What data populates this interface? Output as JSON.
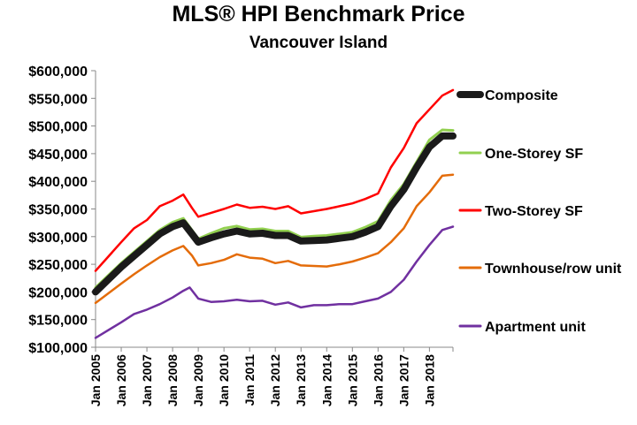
{
  "chart_data": {
    "type": "line",
    "title": "MLS® HPI Benchmark Price",
    "subtitle": "Vancouver Island",
    "xlabel": "",
    "ylabel": "",
    "ylim": [
      100000,
      600000
    ],
    "xlim": [
      "2005-01",
      "2018-12"
    ],
    "x_tick_labels": [
      "Jan 2005",
      "Jan 2006",
      "Jan 2007",
      "Jan 2008",
      "Jan 2009",
      "Jan 2010",
      "Jan 2011",
      "Jan 2012",
      "Jan 2013",
      "Jan 2014",
      "Jan 2015",
      "Jan 2016",
      "Jan 2017",
      "Jan 2018"
    ],
    "y_ticks": [
      100000,
      150000,
      200000,
      250000,
      300000,
      350000,
      400000,
      450000,
      500000,
      550000,
      600000
    ],
    "y_tick_labels": [
      "$100,000",
      "$150,000",
      "$200,000",
      "$250,000",
      "$300,000",
      "$350,000",
      "$400,000",
      "$450,000",
      "$500,000",
      "$550,000",
      "$600,000"
    ],
    "legend_placement": "right",
    "grid": false,
    "series": [
      {
        "name": "Composite",
        "color": "#1a1a1a",
        "points": [
          [
            "2005-01",
            200000
          ],
          [
            "2006-01",
            245000
          ],
          [
            "2006-07",
            265000
          ],
          [
            "2007-01",
            285000
          ],
          [
            "2007-07",
            305000
          ],
          [
            "2008-01",
            318000
          ],
          [
            "2008-06",
            325000
          ],
          [
            "2008-10",
            305000
          ],
          [
            "2009-01",
            290000
          ],
          [
            "2009-07",
            298000
          ],
          [
            "2010-01",
            305000
          ],
          [
            "2010-07",
            310000
          ],
          [
            "2011-01",
            305000
          ],
          [
            "2011-07",
            306000
          ],
          [
            "2012-01",
            302000
          ],
          [
            "2012-07",
            302000
          ],
          [
            "2013-01",
            292000
          ],
          [
            "2013-07",
            293000
          ],
          [
            "2014-01",
            294000
          ],
          [
            "2014-07",
            297000
          ],
          [
            "2015-01",
            300000
          ],
          [
            "2015-07",
            308000
          ],
          [
            "2016-01",
            318000
          ],
          [
            "2016-07",
            355000
          ],
          [
            "2017-01",
            385000
          ],
          [
            "2017-07",
            425000
          ],
          [
            "2018-01",
            462000
          ],
          [
            "2018-07",
            482000
          ],
          [
            "2018-12",
            482000
          ]
        ]
      },
      {
        "name": "One-Storey SF",
        "color": "#92d050",
        "points": [
          [
            "2005-01",
            208000
          ],
          [
            "2006-01",
            252000
          ],
          [
            "2006-07",
            272000
          ],
          [
            "2007-01",
            292000
          ],
          [
            "2007-07",
            312000
          ],
          [
            "2008-01",
            326000
          ],
          [
            "2008-06",
            333000
          ],
          [
            "2008-10",
            312000
          ],
          [
            "2009-01",
            296000
          ],
          [
            "2009-07",
            306000
          ],
          [
            "2010-01",
            315000
          ],
          [
            "2010-07",
            319000
          ],
          [
            "2011-01",
            313000
          ],
          [
            "2011-07",
            314000
          ],
          [
            "2012-01",
            310000
          ],
          [
            "2012-07",
            310000
          ],
          [
            "2013-01",
            299000
          ],
          [
            "2013-07",
            301000
          ],
          [
            "2014-01",
            302000
          ],
          [
            "2014-07",
            305000
          ],
          [
            "2015-01",
            308000
          ],
          [
            "2015-07",
            317000
          ],
          [
            "2016-01",
            328000
          ],
          [
            "2016-07",
            366000
          ],
          [
            "2017-01",
            395000
          ],
          [
            "2017-07",
            435000
          ],
          [
            "2018-01",
            475000
          ],
          [
            "2018-07",
            493000
          ],
          [
            "2018-12",
            492000
          ]
        ]
      },
      {
        "name": "Two-Storey SF",
        "color": "#ff0000",
        "points": [
          [
            "2005-01",
            238000
          ],
          [
            "2006-01",
            290000
          ],
          [
            "2006-07",
            315000
          ],
          [
            "2007-01",
            330000
          ],
          [
            "2007-07",
            355000
          ],
          [
            "2008-01",
            365000
          ],
          [
            "2008-06",
            376000
          ],
          [
            "2008-10",
            352000
          ],
          [
            "2009-01",
            336000
          ],
          [
            "2009-07",
            343000
          ],
          [
            "2010-01",
            350000
          ],
          [
            "2010-07",
            358000
          ],
          [
            "2011-01",
            352000
          ],
          [
            "2011-07",
            354000
          ],
          [
            "2012-01",
            350000
          ],
          [
            "2012-07",
            355000
          ],
          [
            "2013-01",
            342000
          ],
          [
            "2013-07",
            346000
          ],
          [
            "2014-01",
            350000
          ],
          [
            "2014-07",
            355000
          ],
          [
            "2015-01",
            360000
          ],
          [
            "2015-07",
            368000
          ],
          [
            "2016-01",
            378000
          ],
          [
            "2016-07",
            425000
          ],
          [
            "2017-01",
            460000
          ],
          [
            "2017-07",
            505000
          ],
          [
            "2018-01",
            530000
          ],
          [
            "2018-07",
            555000
          ],
          [
            "2018-12",
            565000
          ]
        ]
      },
      {
        "name": "Townhouse/row unit",
        "color": "#e46c0a",
        "points": [
          [
            "2005-01",
            180000
          ],
          [
            "2006-01",
            215000
          ],
          [
            "2006-07",
            232000
          ],
          [
            "2007-01",
            248000
          ],
          [
            "2007-07",
            263000
          ],
          [
            "2008-01",
            275000
          ],
          [
            "2008-06",
            283000
          ],
          [
            "2008-10",
            266000
          ],
          [
            "2009-01",
            248000
          ],
          [
            "2009-07",
            252000
          ],
          [
            "2010-01",
            258000
          ],
          [
            "2010-07",
            268000
          ],
          [
            "2011-01",
            262000
          ],
          [
            "2011-07",
            260000
          ],
          [
            "2012-01",
            252000
          ],
          [
            "2012-07",
            256000
          ],
          [
            "2013-01",
            248000
          ],
          [
            "2013-07",
            247000
          ],
          [
            "2014-01",
            246000
          ],
          [
            "2014-07",
            250000
          ],
          [
            "2015-01",
            255000
          ],
          [
            "2015-07",
            262000
          ],
          [
            "2016-01",
            270000
          ],
          [
            "2016-07",
            290000
          ],
          [
            "2017-01",
            315000
          ],
          [
            "2017-07",
            355000
          ],
          [
            "2018-01",
            380000
          ],
          [
            "2018-07",
            410000
          ],
          [
            "2018-12",
            412000
          ]
        ]
      },
      {
        "name": "Apartment unit",
        "color": "#7030a0",
        "points": [
          [
            "2005-01",
            117000
          ],
          [
            "2006-01",
            145000
          ],
          [
            "2006-07",
            160000
          ],
          [
            "2007-01",
            168000
          ],
          [
            "2007-07",
            178000
          ],
          [
            "2008-01",
            190000
          ],
          [
            "2008-06",
            202000
          ],
          [
            "2008-09",
            208000
          ],
          [
            "2009-01",
            188000
          ],
          [
            "2009-07",
            182000
          ],
          [
            "2010-01",
            183000
          ],
          [
            "2010-07",
            186000
          ],
          [
            "2011-01",
            183000
          ],
          [
            "2011-07",
            184000
          ],
          [
            "2012-01",
            177000
          ],
          [
            "2012-07",
            181000
          ],
          [
            "2013-01",
            172000
          ],
          [
            "2013-07",
            176000
          ],
          [
            "2014-01",
            176000
          ],
          [
            "2014-07",
            178000
          ],
          [
            "2015-01",
            178000
          ],
          [
            "2015-07",
            183000
          ],
          [
            "2016-01",
            188000
          ],
          [
            "2016-07",
            200000
          ],
          [
            "2017-01",
            222000
          ],
          [
            "2017-07",
            255000
          ],
          [
            "2018-01",
            285000
          ],
          [
            "2018-07",
            312000
          ],
          [
            "2018-12",
            318000
          ]
        ]
      }
    ]
  }
}
